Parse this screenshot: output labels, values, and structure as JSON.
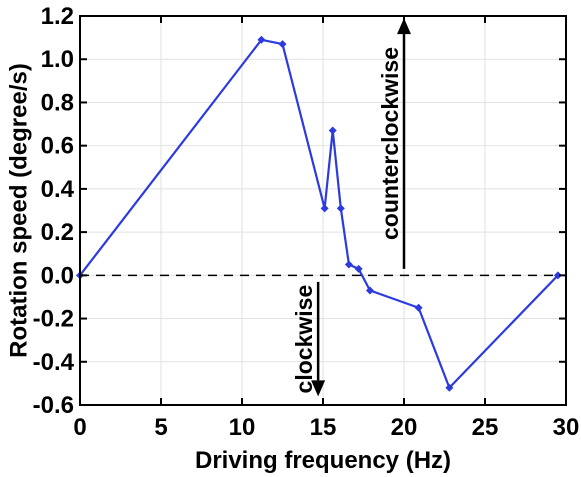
{
  "chart_data": {
    "type": "line",
    "xlabel": "Driving frequency (Hz)",
    "ylabel": "Rotation speed (degree/s)",
    "xlim": [
      0,
      30
    ],
    "ylim": [
      -0.6,
      1.2
    ],
    "xticks": [
      0,
      5,
      10,
      15,
      20,
      25,
      30
    ],
    "yticks": [
      -0.6,
      -0.4,
      -0.2,
      0.0,
      0.2,
      0.4,
      0.6,
      0.8,
      1.0,
      1.2
    ],
    "xtick_labels": [
      "0",
      "5",
      "10",
      "15",
      "20",
      "25",
      "30"
    ],
    "ytick_labels": [
      "-0.6",
      "-0.4",
      "-0.2",
      "0.0",
      "0.2",
      "0.4",
      "0.6",
      "0.8",
      "1.0",
      "1.2"
    ],
    "grid": true,
    "zero_line": "dashed",
    "series": [
      {
        "color": "#2b3be0",
        "marker": "diamond",
        "x": [
          0,
          11.2,
          12.5,
          15.1,
          15.6,
          16.1,
          16.6,
          17.2,
          17.9,
          20.9,
          22.8,
          29.5
        ],
        "y": [
          0.0,
          1.09,
          1.07,
          0.31,
          0.67,
          0.31,
          0.05,
          0.03,
          -0.07,
          -0.15,
          -0.52,
          0.0
        ]
      }
    ],
    "annotations": [
      {
        "text": "counterclockwise",
        "x": 20.0,
        "arrow_from": 0.03,
        "arrow_to": 1.19,
        "direction": "up"
      },
      {
        "text": "clockwise",
        "x": 14.7,
        "arrow_from": -0.03,
        "arrow_to": -0.56,
        "direction": "down"
      }
    ]
  }
}
